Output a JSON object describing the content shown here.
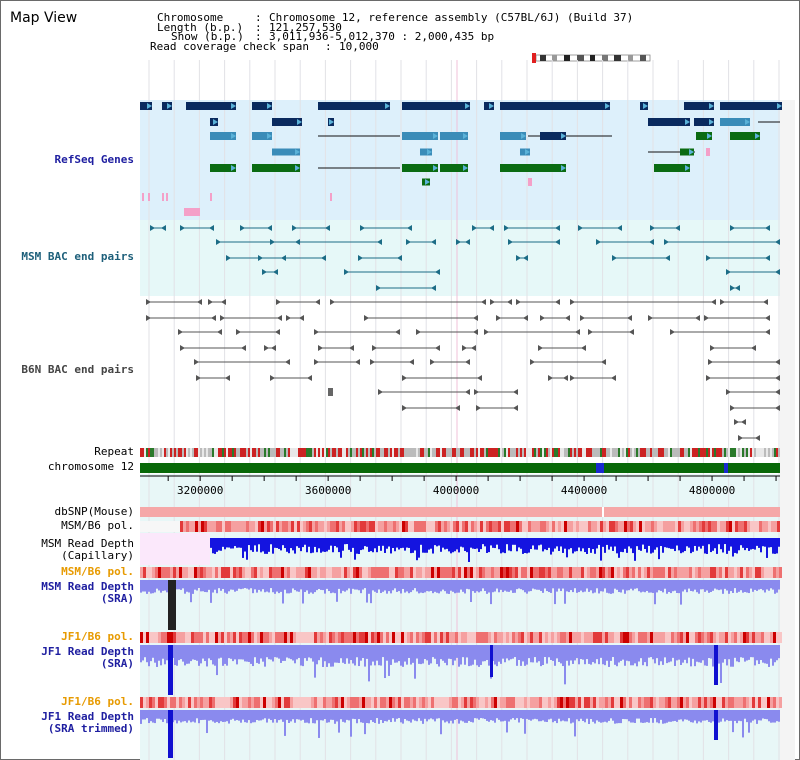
{
  "window": {
    "title": "Map View"
  },
  "header": {
    "chromosome_label": "Chromosome",
    "chromosome_value": "Chromosome 12, reference assembly (C57BL/6J) (Build 37)",
    "length_label": "Length (b.p.)",
    "length_value": "121,257,530",
    "show_label": "Show (b.p.)",
    "show_value": "3,011,936-5,012,370 : 2,000,435 bp",
    "coverage_label": "Read coverage check span",
    "coverage_value": "10,000"
  },
  "tracks": {
    "refseq": "RefSeq Genes",
    "msm_bac": "MSM BAC end pairs",
    "b6n_bac": "B6N BAC end pairs",
    "repeat": "Repeat",
    "chromosome": "chromosome 12",
    "dbsnp": "dbSNP(Mouse)",
    "msm_b6_pol": "MSM/B6 pol.",
    "msm_depth_cap_1": "MSM Read Depth",
    "msm_depth_cap_2": "(Capillary)",
    "msm_b6_pol_2": "MSM/B6 pol.",
    "msm_depth_sra_1": "MSM Read Depth",
    "msm_depth_sra_2": "(SRA)",
    "jf1_b6_pol": "JF1/B6 pol.",
    "jf1_depth_sra_1": "JF1 Read Depth",
    "jf1_depth_sra_2": "(SRA)",
    "jf1_b6_pol_2": "JF1/B6 pol.",
    "jf1_depth_trim_1": "JF1 Read Depth",
    "jf1_depth_trim_2": "(SRA trimmed)"
  },
  "axis": {
    "ticks": [
      "3200000",
      "3600000",
      "4000000",
      "4400000",
      "4800000"
    ],
    "tick_values": [
      3200000,
      3600000,
      4000000,
      4400000,
      4800000
    ],
    "range_bp": [
      3011936,
      5012370
    ]
  },
  "colors": {
    "refseq_bg": "#ddf0fb",
    "msm_bg": "#e6f8f8",
    "b6n_bg": "#ffffff",
    "gene_navy": "#0a2a5e",
    "gene_steel": "#3a8cb8",
    "gene_green": "#0a6b12",
    "gene_pink": "#f4a0c8",
    "msm_pair": "#1c6c86",
    "b6n_pair": "#555555",
    "chrom_green": "#086808",
    "depth_blue": "#1414e0",
    "depth_lavender": "#8a8aee",
    "pol_pink": "#f5a0a0",
    "pol_red": "#e01010",
    "axis_bg": "#e8f7f7"
  }
}
